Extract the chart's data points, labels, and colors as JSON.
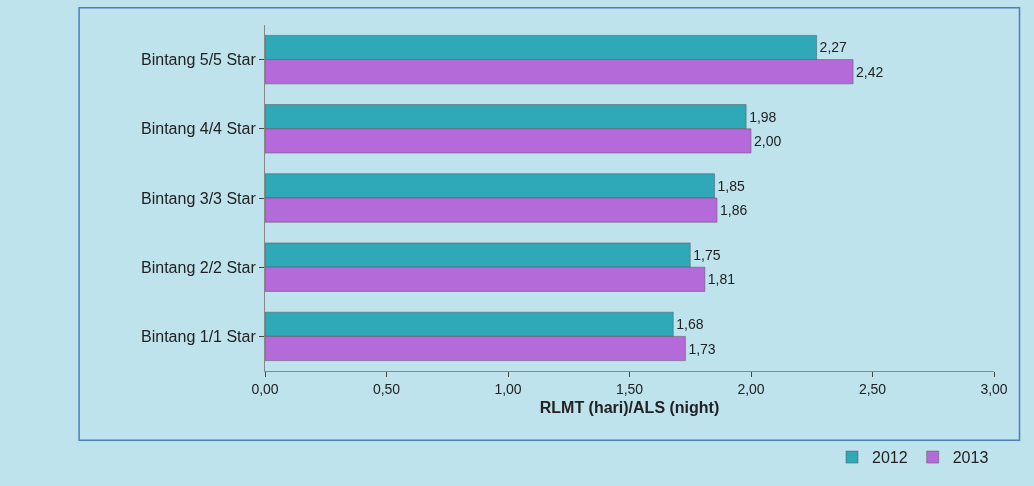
{
  "chart_data": {
    "type": "bar",
    "orientation": "horizontal",
    "xlabel": "RLMT (hari)/ALS (night)",
    "categories": [
      "Bintang 5/5 Star",
      "Bintang 4/4 Star",
      "Bintang 3/3 Star",
      "Bintang 2/2 Star",
      "Bintang 1/1 Star"
    ],
    "series": [
      {
        "name": "2012",
        "color": "#2fa8b8",
        "values": [
          2.27,
          1.98,
          1.85,
          1.75,
          1.68
        ],
        "value_labels": [
          "2,27",
          "1,98",
          "1,85",
          "1,75",
          "1,68"
        ]
      },
      {
        "name": "2013",
        "color": "#b46ad8",
        "values": [
          2.42,
          2.0,
          1.86,
          1.81,
          1.73
        ],
        "value_labels": [
          "2,42",
          "2,00",
          "1,86",
          "1,81",
          "1,73"
        ]
      }
    ],
    "xlim": [
      0,
      3
    ],
    "xticks": [
      {
        "value": 0,
        "label": "0,00"
      },
      {
        "value": 0.5,
        "label": "0,50"
      },
      {
        "value": 1,
        "label": "1,00"
      },
      {
        "value": 1.5,
        "label": "1,50"
      },
      {
        "value": 2,
        "label": "2,00"
      },
      {
        "value": 2.5,
        "label": "2,50"
      },
      {
        "value": 3,
        "label": "3,00"
      }
    ],
    "grid": false,
    "legend": "bottom right"
  }
}
